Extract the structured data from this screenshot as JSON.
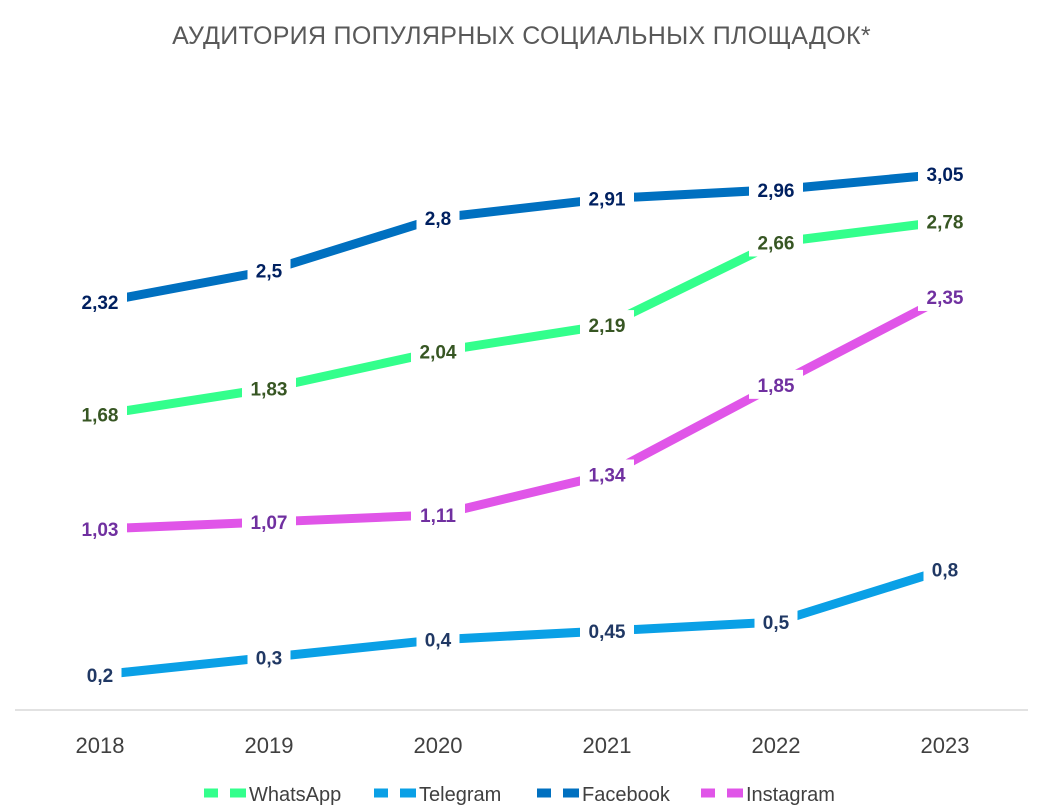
{
  "chart_data": {
    "type": "line",
    "title": "АУДИТОРИЯ ПОПУЛЯРНЫХ СОЦИАЛЬНЫХ ПЛОЩАДОК*",
    "xlabel": "",
    "ylabel": "",
    "categories": [
      "2018",
      "2019",
      "2020",
      "2021",
      "2022",
      "2023"
    ],
    "labels": {
      "WhatsApp": [
        "1,68",
        "1,83",
        "2,04",
        "2,19",
        "2,66",
        "2,78"
      ],
      "Telegram": [
        "0,2",
        "0,3",
        "0,4",
        "0,45",
        "0,5",
        "0,8"
      ],
      "Facebook": [
        "2,32",
        "2,5",
        "2,8",
        "2,91",
        "2,96",
        "3,05"
      ],
      "Instagram": [
        "1,03",
        "1,07",
        "1,11",
        "1,34",
        "1,85",
        "2,35"
      ]
    },
    "series": [
      {
        "name": "WhatsApp",
        "color": "#33FF8C",
        "label_color": "#375623",
        "values": [
          1.68,
          1.83,
          2.04,
          2.19,
          2.66,
          2.78
        ]
      },
      {
        "name": "Telegram",
        "color": "#0AA0E6",
        "label_color": "#203864",
        "values": [
          0.2,
          0.3,
          0.4,
          0.45,
          0.5,
          0.8
        ]
      },
      {
        "name": "Facebook",
        "color": "#0070C0",
        "label_color": "#002060",
        "values": [
          2.32,
          2.5,
          2.8,
          2.91,
          2.96,
          3.05
        ]
      },
      {
        "name": "Instagram",
        "color": "#E055E8",
        "label_color": "#7030A0",
        "values": [
          1.03,
          1.07,
          1.11,
          1.34,
          1.85,
          2.35
        ]
      }
    ],
    "ylim": [
      0,
      3.3
    ],
    "grid": false,
    "legend_position": "bottom",
    "axis_line_color": "#D9D9D9"
  }
}
